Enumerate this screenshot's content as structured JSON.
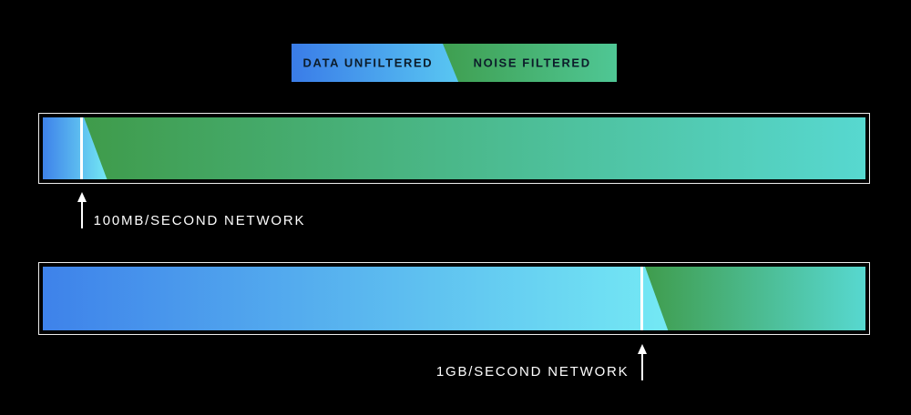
{
  "colors": {
    "background": "#000000",
    "blue_start": "#3e82ea",
    "blue_end": "#74e9f4",
    "green_start": "#3f9b4a",
    "green_end": "#57d8d0",
    "legend_blue_start": "#3a7ce8",
    "legend_blue_end": "#59c7f2",
    "legend_green_start": "#3f9e4f",
    "legend_green_end": "#4fc795",
    "legend_text": "#0c1c2a",
    "label_text": "#ffffff",
    "frame_border": "#ececec"
  },
  "legend": {
    "items": [
      {
        "label": "DATA UNFILTERED"
      },
      {
        "label": "NOISE FILTERED"
      }
    ]
  },
  "chart_data": {
    "type": "bar",
    "orientation": "horizontal",
    "title": "",
    "categories": [
      "100MB/SECOND NETWORK",
      "1GB/SECOND NETWORK"
    ],
    "series": [
      {
        "name": "DATA UNFILTERED",
        "values": [
          4.5,
          72.7
        ]
      },
      {
        "name": "NOISE FILTERED",
        "values": [
          95.5,
          27.3
        ]
      }
    ],
    "unit": "percent of bar width",
    "legend_position": "top",
    "annotation_marker": "white threshold line with up arrow",
    "grid": false
  }
}
